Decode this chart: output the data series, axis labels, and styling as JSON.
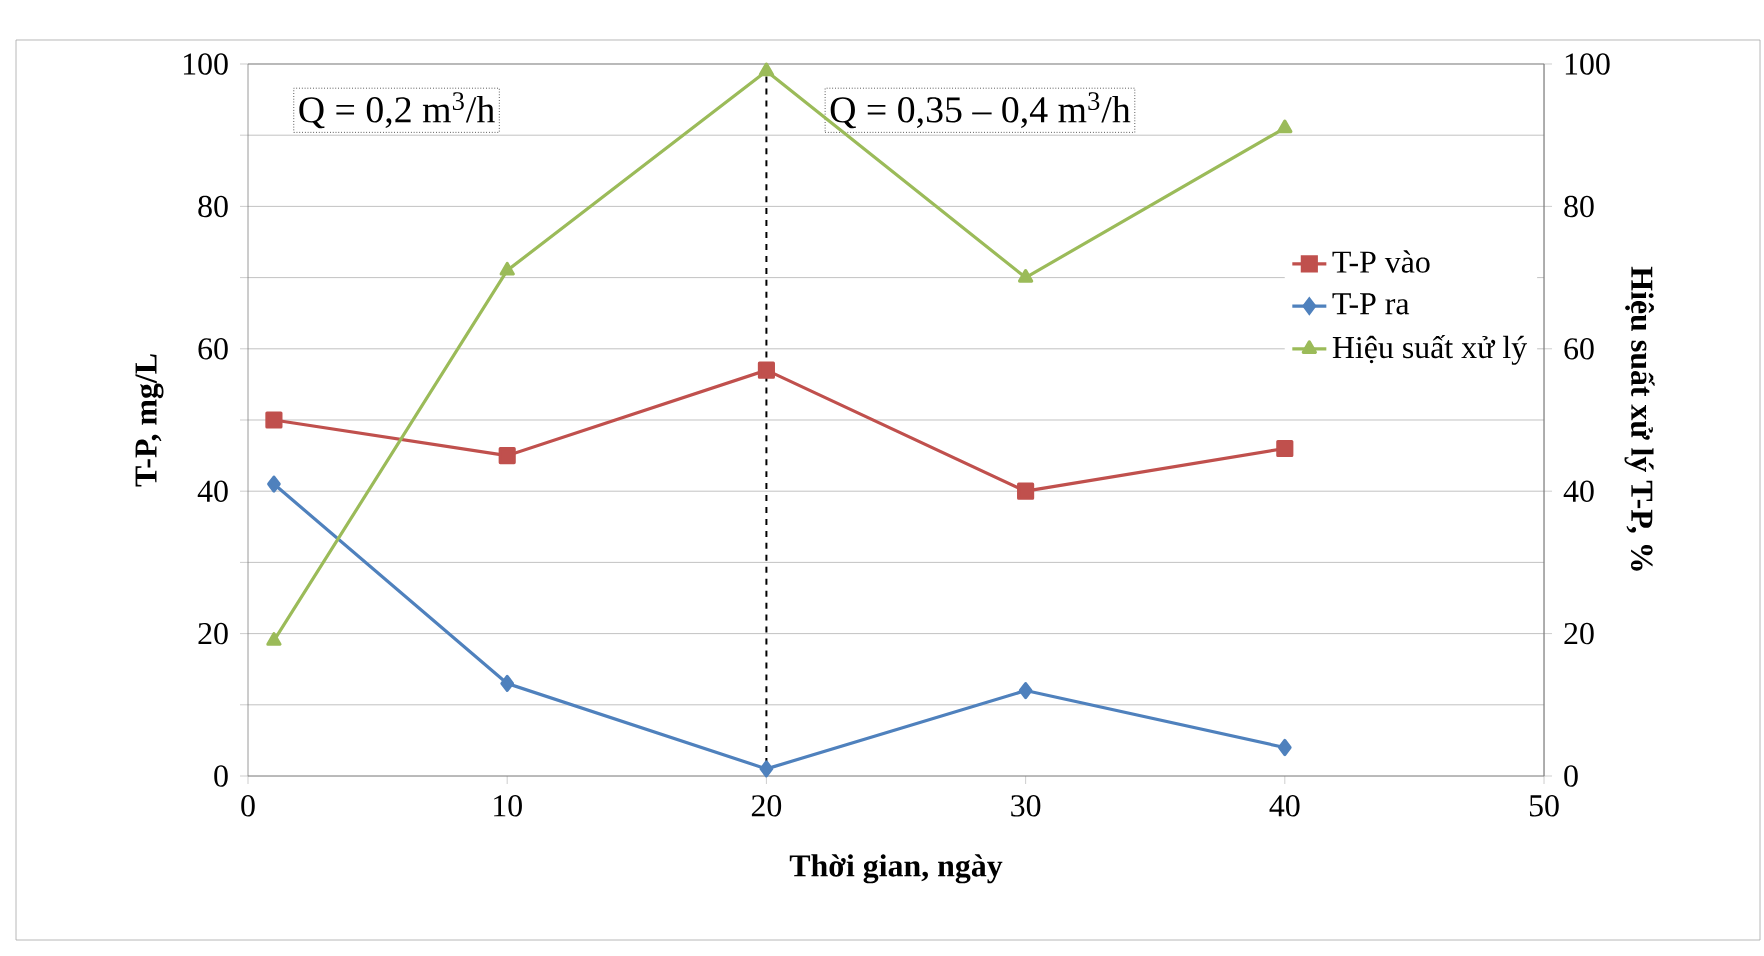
{
  "chart_data": {
    "type": "line",
    "xlabel": "Thời gian, ngày",
    "ylabel": "T-P, mg/L",
    "y2label": "Hiệu suất xử lý T-P, %",
    "xlim": [
      0,
      50
    ],
    "xticks": [
      0,
      10,
      20,
      30,
      40,
      50
    ],
    "ylim": [
      0,
      100
    ],
    "yticks": [
      0,
      {
        "value": 10,
        "label": null
      },
      20,
      {
        "value": 30,
        "label": null
      },
      40,
      {
        "value": 50,
        "label": null
      },
      60,
      {
        "value": 70,
        "label": null
      },
      80,
      {
        "value": 90,
        "label": null
      },
      100
    ],
    "y2lim": [
      0,
      100
    ],
    "y2ticks": [
      0,
      20,
      40,
      60,
      80,
      100
    ],
    "grid": "y",
    "legend": "right",
    "series": [
      {
        "name": "T-P vào",
        "color": "#c0504d",
        "marker": "square",
        "x": [
          1,
          10,
          20,
          30,
          40
        ],
        "values": [
          50,
          45,
          57,
          40,
          46
        ]
      },
      {
        "name": "T-P ra",
        "color": "#4f81bd",
        "marker": "diamond",
        "x": [
          1,
          10,
          20,
          30,
          40
        ],
        "values": [
          41,
          13,
          1,
          12,
          4
        ]
      },
      {
        "name": "Hiệu suất xử lý",
        "color": "#9bbb59",
        "marker": "triangle",
        "axis": "y2",
        "x": [
          1,
          10,
          20,
          30,
          40
        ],
        "values": [
          19,
          71,
          99,
          70,
          91
        ]
      }
    ],
    "ref_lines": [
      {
        "axis": "x",
        "value": 20,
        "color": "#000000",
        "line_style": "dashed"
      }
    ],
    "annotations": [
      "Q = 0,2 m$^{3}$/h",
      "Q = 0,35 – 0,4 m$^{3}$/h"
    ]
  }
}
